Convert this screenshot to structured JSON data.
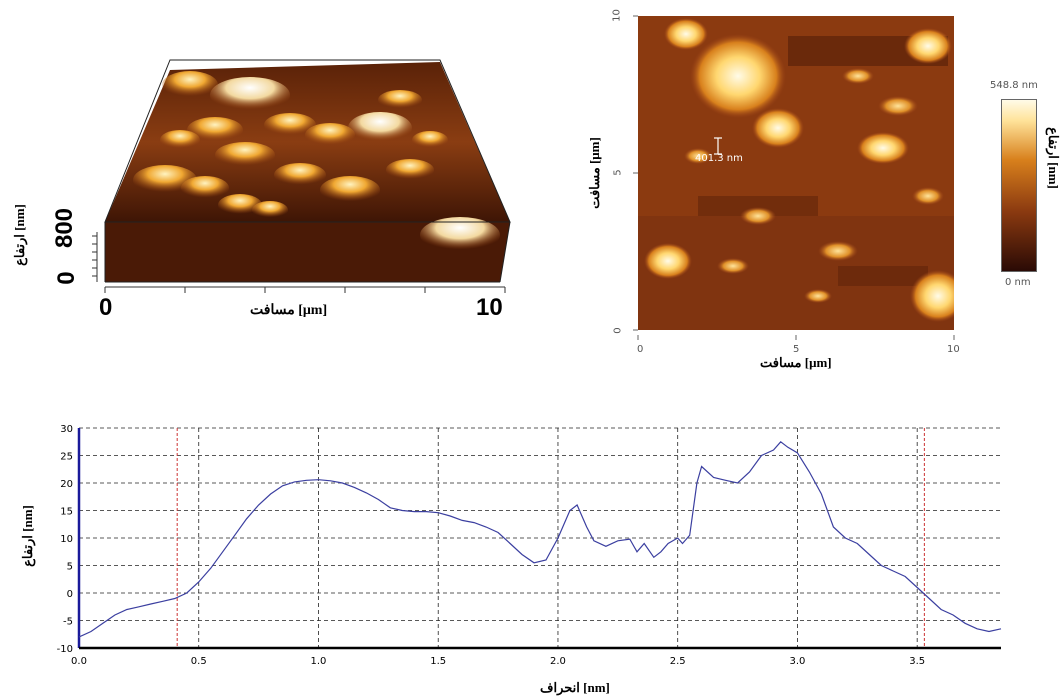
{
  "surface_3d": {
    "x_label": "مسافت [μm]",
    "x_ticks": [
      "0",
      "10"
    ],
    "z_label": "ارتفاع [nm]",
    "z_ticks": [
      "0",
      "800"
    ]
  },
  "height_map": {
    "x_label": "مسافت [μm]",
    "y_label": "مسافت [μm]",
    "x_ticks": [
      "0",
      "5",
      "10"
    ],
    "y_ticks": [
      "0",
      "5",
      "10"
    ],
    "annotation": "401.3 nm",
    "colorbar_max": "548.8 nm",
    "colorbar_min": "0 nm",
    "colorbar_label": "ارتفاع [nm]",
    "colors": [
      "#2a0a05",
      "#8b3a10",
      "#d8801c",
      "#ffe39a",
      "#fffbe8"
    ]
  },
  "chart_data": {
    "type": "line",
    "xlabel": "انحراف [nm]",
    "ylabel": "ارتفاع [nm]",
    "xlim": [
      0,
      3.85
    ],
    "ylim": [
      -10,
      30
    ],
    "x_ticks": [
      "0.0",
      "0.5",
      "1.0",
      "1.5",
      "2.0",
      "2.5",
      "3.0",
      "3.5"
    ],
    "y_ticks": [
      "30",
      "25",
      "20",
      "15",
      "10",
      "5",
      "0",
      "-5",
      "-10"
    ],
    "grid": true,
    "markers_x": [
      0.41,
      3.53
    ],
    "line_color": "#3b3fa0",
    "marker_color": "#cc3333",
    "series": [
      {
        "x": [
          0.0,
          0.05,
          0.1,
          0.15,
          0.2,
          0.25,
          0.3,
          0.35,
          0.4,
          0.45,
          0.5,
          0.55,
          0.6,
          0.65,
          0.7,
          0.75,
          0.8,
          0.85,
          0.9,
          0.95,
          1.0,
          1.05,
          1.1,
          1.15,
          1.2,
          1.25,
          1.3,
          1.35,
          1.4,
          1.45,
          1.5,
          1.55,
          1.6,
          1.65,
          1.7,
          1.75,
          1.8,
          1.85,
          1.9,
          1.95,
          2.0,
          2.05,
          2.08,
          2.12,
          2.15,
          2.2,
          2.25,
          2.3,
          2.33,
          2.36,
          2.4,
          2.43,
          2.46,
          2.5,
          2.52,
          2.55,
          2.58,
          2.6,
          2.65,
          2.7,
          2.75,
          2.8,
          2.85,
          2.9,
          2.93,
          2.96,
          3.0,
          3.05,
          3.1,
          3.15,
          3.2,
          3.25,
          3.3,
          3.35,
          3.4,
          3.45,
          3.5,
          3.55,
          3.6,
          3.65,
          3.7,
          3.75,
          3.8,
          3.85
        ],
        "y": [
          -8,
          -7,
          -5.5,
          -4,
          -3,
          -2.5,
          -2,
          -1.5,
          -1,
          0,
          2,
          4.5,
          7.5,
          10.5,
          13.5,
          16,
          18,
          19.5,
          20.2,
          20.5,
          20.6,
          20.4,
          20,
          19.2,
          18.2,
          17,
          15.5,
          15,
          14.8,
          14.8,
          14.6,
          14,
          13.2,
          12.8,
          12,
          11,
          9,
          7,
          5.5,
          6,
          10,
          15,
          16,
          12,
          9.5,
          8.5,
          9.5,
          9.8,
          7.5,
          9,
          6.5,
          7.5,
          9,
          10,
          9,
          10.5,
          20,
          23,
          21,
          20.5,
          20,
          22,
          25,
          26,
          27.5,
          26.5,
          25.5,
          22,
          18,
          12,
          10,
          9,
          7,
          5,
          4,
          3,
          1,
          -1,
          -3,
          -4,
          -5.5,
          -6.5,
          -7,
          -6.5
        ]
      }
    ]
  }
}
